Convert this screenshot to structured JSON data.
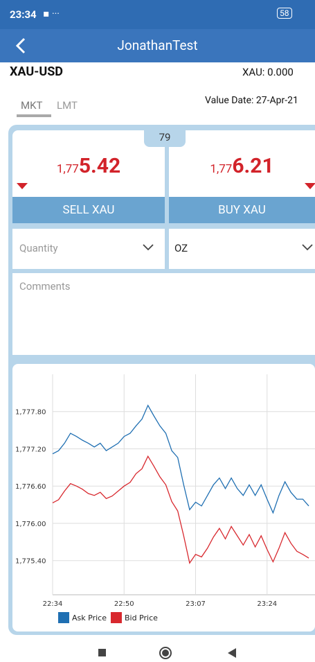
{
  "status_bar": {
    "time": "23:34",
    "battery": "58"
  },
  "header": {
    "title": "JonathanTest"
  },
  "instrument": {
    "symbol": "XAU-USD",
    "position": "XAU: 0.000",
    "value_date": "Value Date: 27-Apr-21"
  },
  "tabs": [
    "MKT",
    "LMT"
  ],
  "spread": "79",
  "sell": {
    "price_prefix": "1,77",
    "price_main": "5.42",
    "button": "SELL XAU"
  },
  "buy": {
    "price_prefix": "1,77",
    "price_main": "6.21",
    "button": "BUY XAU"
  },
  "quantity_placeholder": "Quantity",
  "unit": "OZ",
  "comments_placeholder": "Comments",
  "chart_data": {
    "type": "line",
    "categories": [
      "22:34",
      null,
      null,
      null,
      null,
      null,
      null,
      null,
      null,
      null,
      null,
      null,
      "22:50",
      null,
      null,
      null,
      null,
      null,
      null,
      null,
      null,
      null,
      null,
      null,
      "23:07",
      null,
      null,
      null,
      null,
      null,
      null,
      null,
      null,
      null,
      null,
      null,
      "23:24",
      null,
      null,
      null,
      null,
      null,
      null,
      null
    ],
    "series": [
      {
        "name": "Ask Price",
        "color": "#1f6fb2",
        "values": [
          1777.12,
          1777.17,
          1777.29,
          1777.45,
          1777.4,
          1777.34,
          1777.29,
          1777.23,
          1777.29,
          1777.17,
          1777.23,
          1777.29,
          1777.4,
          1777.45,
          1777.57,
          1777.68,
          1777.9,
          1777.73,
          1777.57,
          1777.45,
          1777.17,
          1777.06,
          1776.62,
          1776.22,
          1776.34,
          1776.28,
          1776.45,
          1776.62,
          1776.73,
          1776.56,
          1776.73,
          1776.56,
          1776.45,
          1776.62,
          1776.45,
          1776.62,
          1776.39,
          1776.17,
          1776.45,
          1776.67,
          1776.5,
          1776.39,
          1776.39,
          1776.28
        ]
      },
      {
        "name": "Bid Price",
        "color": "#d8282e",
        "values": [
          1776.33,
          1776.38,
          1776.52,
          1776.64,
          1776.6,
          1776.55,
          1776.48,
          1776.45,
          1776.5,
          1776.4,
          1776.44,
          1776.52,
          1776.6,
          1776.66,
          1776.8,
          1776.88,
          1777.08,
          1776.92,
          1776.75,
          1776.62,
          1776.35,
          1776.2,
          1775.8,
          1775.36,
          1775.5,
          1775.46,
          1775.6,
          1775.78,
          1775.92,
          1775.75,
          1775.95,
          1775.8,
          1775.65,
          1775.82,
          1775.62,
          1775.8,
          1775.58,
          1775.38,
          1775.6,
          1775.85,
          1775.68,
          1775.55,
          1775.5,
          1775.44
        ]
      }
    ],
    "ylim": [
      1774.85,
      1778.4
    ],
    "yticks": [
      {
        "value": 1775.4,
        "label": "1,775.40"
      },
      {
        "value": 1776.0,
        "label": "1,776.00"
      },
      {
        "value": 1776.6,
        "label": "1,776.60"
      },
      {
        "value": 1777.2,
        "label": "1,777.20"
      },
      {
        "value": 1777.8,
        "label": "1,777.80"
      }
    ],
    "grid": true,
    "legend": "bottom"
  }
}
